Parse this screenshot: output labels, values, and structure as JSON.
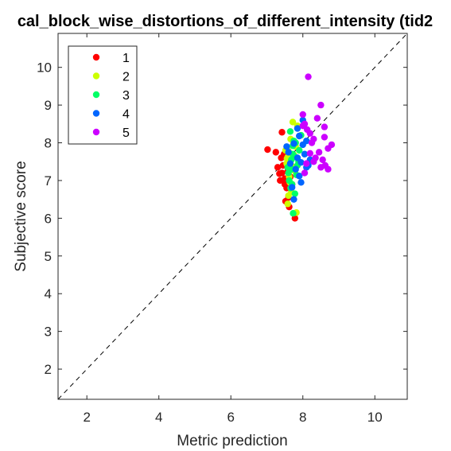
{
  "chart_data": {
    "type": "scatter",
    "title": "cal_block_wise_distortions_of_different_intensity (tid2",
    "xlabel": "Metric prediction",
    "ylabel": "Subjective score",
    "xlim": [
      1.2,
      10.9
    ],
    "ylim": [
      1.2,
      10.9
    ],
    "xticks": [
      "2",
      "4",
      "6",
      "8",
      "10"
    ],
    "yticks": [
      "2",
      "3",
      "4",
      "5",
      "6",
      "7",
      "8",
      "9",
      "10"
    ],
    "xtick_values": [
      2,
      4,
      6,
      8,
      10
    ],
    "ytick_values": [
      2,
      3,
      4,
      5,
      6,
      7,
      8,
      9,
      10
    ],
    "grid": false,
    "legend_position": "top-left",
    "reference_line": "y = x (dashed)",
    "series": [
      {
        "name": "1",
        "color": "#ff0000",
        "points": [
          [
            7.02,
            7.82
          ],
          [
            7.42,
            8.28
          ],
          [
            7.37,
            7.0
          ],
          [
            7.35,
            7.18
          ],
          [
            7.45,
            7.4
          ],
          [
            7.5,
            7.05
          ],
          [
            7.55,
            6.8
          ],
          [
            7.6,
            6.55
          ],
          [
            7.62,
            6.3
          ],
          [
            7.78,
            6.0
          ],
          [
            7.4,
            7.6
          ],
          [
            7.3,
            7.35
          ],
          [
            7.58,
            7.25
          ],
          [
            7.25,
            7.75
          ],
          [
            7.5,
            6.9
          ],
          [
            7.65,
            7.1
          ],
          [
            7.48,
            7.7
          ],
          [
            7.52,
            6.45
          ],
          [
            7.7,
            6.9
          ],
          [
            7.42,
            7.2
          ]
        ]
      },
      {
        "name": "2",
        "color": "#ccff00",
        "points": [
          [
            7.56,
            7.58
          ],
          [
            7.6,
            7.78
          ],
          [
            7.65,
            7.48
          ],
          [
            7.58,
            6.38
          ],
          [
            7.82,
            6.15
          ],
          [
            7.7,
            7.38
          ],
          [
            7.75,
            7.68
          ],
          [
            7.62,
            7.1
          ],
          [
            7.55,
            7.45
          ],
          [
            7.68,
            6.7
          ],
          [
            7.8,
            7.9
          ],
          [
            7.72,
            8.55
          ],
          [
            7.85,
            8.45
          ],
          [
            7.6,
            6.6
          ],
          [
            7.52,
            7.8
          ],
          [
            7.78,
            7.25
          ],
          [
            7.66,
            8.1
          ],
          [
            7.74,
            8.0
          ],
          [
            7.58,
            7.62
          ],
          [
            7.64,
            6.95
          ]
        ]
      },
      {
        "name": "3",
        "color": "#00ff66",
        "points": [
          [
            7.65,
            8.3
          ],
          [
            7.72,
            7.92
          ],
          [
            7.8,
            7.62
          ],
          [
            7.6,
            7.2
          ],
          [
            7.7,
            6.9
          ],
          [
            7.78,
            6.65
          ],
          [
            7.73,
            6.13
          ],
          [
            7.85,
            7.4
          ],
          [
            7.9,
            7.8
          ],
          [
            7.68,
            7.55
          ],
          [
            7.62,
            7.0
          ],
          [
            7.82,
            7.15
          ],
          [
            7.75,
            8.05
          ],
          [
            7.95,
            8.2
          ],
          [
            7.58,
            7.35
          ],
          [
            7.88,
            7.5
          ],
          [
            7.66,
            6.8
          ],
          [
            7.72,
            7.7
          ],
          [
            7.8,
            8.0
          ],
          [
            7.7,
            7.3
          ]
        ]
      },
      {
        "name": "4",
        "color": "#0066ff",
        "points": [
          [
            8.0,
            8.6
          ],
          [
            7.85,
            8.38
          ],
          [
            7.9,
            8.18
          ],
          [
            7.75,
            7.98
          ],
          [
            8.05,
            7.7
          ],
          [
            7.95,
            7.48
          ],
          [
            7.8,
            7.3
          ],
          [
            7.9,
            7.12
          ],
          [
            7.95,
            6.95
          ],
          [
            7.7,
            6.82
          ],
          [
            7.75,
            6.5
          ],
          [
            8.1,
            7.35
          ],
          [
            8.2,
            7.55
          ],
          [
            7.6,
            7.75
          ],
          [
            7.85,
            7.6
          ],
          [
            8.0,
            7.95
          ],
          [
            8.1,
            8.05
          ],
          [
            7.65,
            7.45
          ],
          [
            7.55,
            7.9
          ],
          [
            8.15,
            7.4
          ]
        ]
      },
      {
        "name": "5",
        "color": "#cc00ff",
        "points": [
          [
            8.15,
            9.75
          ],
          [
            8.5,
            9.0
          ],
          [
            8.4,
            8.65
          ],
          [
            8.6,
            8.42
          ],
          [
            8.0,
            8.75
          ],
          [
            8.05,
            8.5
          ],
          [
            8.2,
            8.25
          ],
          [
            8.3,
            8.1
          ],
          [
            8.7,
            7.85
          ],
          [
            8.8,
            7.95
          ],
          [
            8.55,
            7.55
          ],
          [
            8.5,
            7.35
          ],
          [
            8.7,
            7.3
          ],
          [
            8.62,
            7.4
          ],
          [
            8.35,
            7.6
          ],
          [
            8.2,
            7.72
          ],
          [
            8.1,
            7.45
          ],
          [
            8.25,
            8.0
          ],
          [
            8.12,
            8.35
          ],
          [
            8.6,
            8.15
          ],
          [
            8.45,
            7.75
          ],
          [
            8.05,
            7.2
          ],
          [
            8.3,
            7.5
          ],
          [
            8.0,
            8.45
          ]
        ]
      }
    ]
  }
}
